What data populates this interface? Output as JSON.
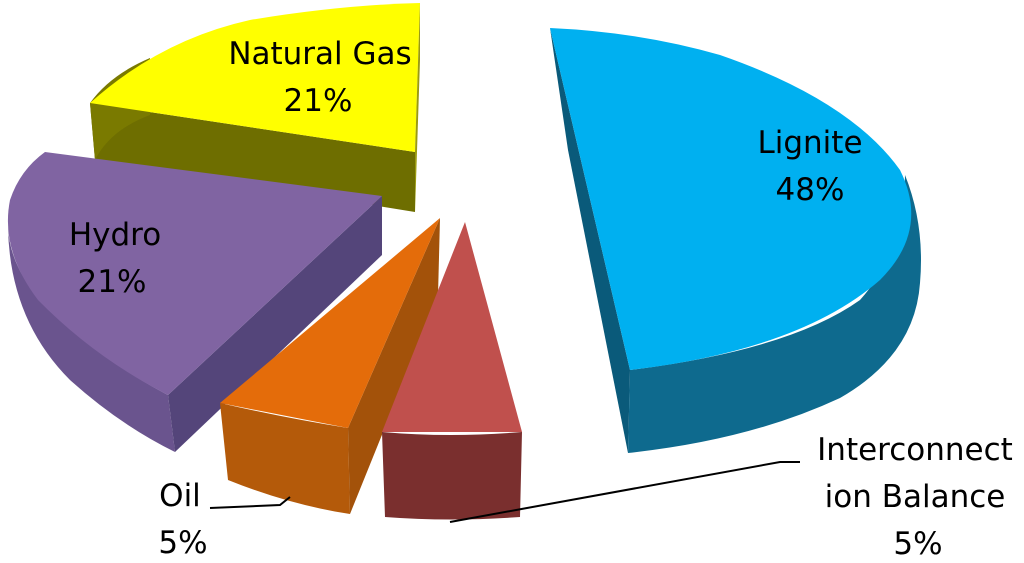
{
  "chart_data": {
    "type": "pie",
    "style": "3d-exploded",
    "title": "",
    "legend": "none",
    "series": [
      {
        "categories": [
          "Lignite",
          "Interconnection Balance",
          "Oil",
          "Hydro",
          "Natural Gas"
        ],
        "values": [
          48,
          5,
          5,
          21,
          21
        ],
        "value_labels": [
          "48%",
          "5%",
          "5%",
          "21%",
          "21%"
        ],
        "colors": [
          "#00b0f0",
          "#c0504d",
          "#e46c0a",
          "#8064a2",
          "#ffff00"
        ]
      }
    ],
    "labels": {
      "lignite": {
        "name": "Lignite",
        "value": "48%"
      },
      "interconnection": {
        "name_line1": "Interconnect",
        "name_line2": "ion Balance",
        "value": "5%"
      },
      "oil": {
        "name": "Oil",
        "value": "5%"
      },
      "hydro": {
        "name": "Hydro",
        "value": "21%"
      },
      "natural_gas": {
        "name": "Natural Gas",
        "value": "21%"
      }
    }
  }
}
